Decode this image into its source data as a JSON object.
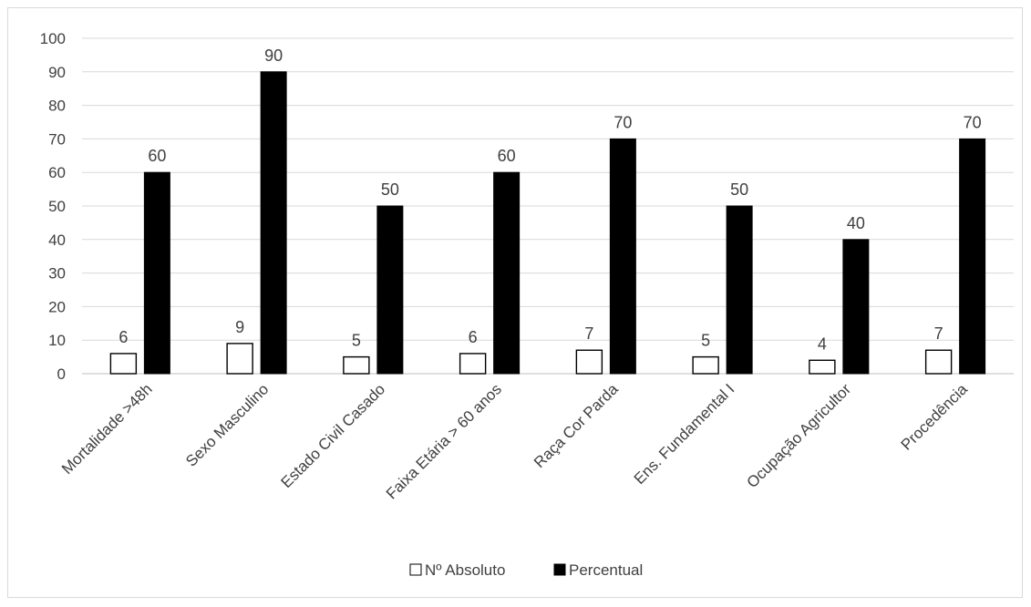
{
  "chart_data": {
    "type": "bar",
    "categories": [
      "Mortalidade >48h",
      "Sexo Masculino",
      "Estado Civil Casado",
      "Faixa Etária > 60 anos",
      "Raça Cor Parda",
      "Ens. Fundamental I",
      "Ocupação Agricultor",
      "Procedência"
    ],
    "series": [
      {
        "name": "Nº Absoluto",
        "values": [
          6,
          9,
          5,
          6,
          7,
          5,
          4,
          7
        ],
        "color": "#ffffff"
      },
      {
        "name": "Percentual",
        "values": [
          60,
          90,
          50,
          60,
          70,
          50,
          40,
          70
        ],
        "color": "#000000"
      }
    ],
    "ylim": [
      0,
      100
    ],
    "yticks": [
      "0",
      "10",
      "20",
      "30",
      "40",
      "50",
      "60",
      "70",
      "80",
      "90",
      "100"
    ],
    "grid": true,
    "legend_position": "bottom",
    "data_labels": true
  }
}
